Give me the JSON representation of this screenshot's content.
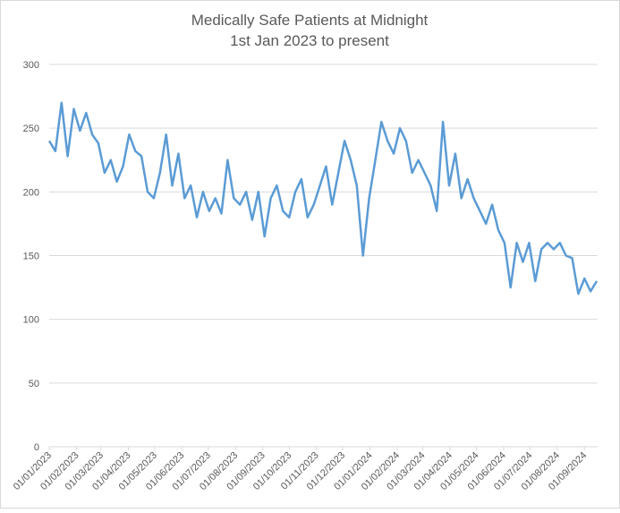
{
  "chart_data": {
    "type": "line",
    "title": "Medically Safe Patients at Midnight",
    "subtitle": "1st Jan 2023 to present",
    "color": "#5b9bd5",
    "grid": true,
    "xlim": [
      "2023-01-01",
      "2024-09-16"
    ],
    "ylim": [
      0,
      300
    ],
    "yticks": [
      0,
      50,
      100,
      150,
      200,
      250,
      300
    ],
    "xticks": [
      {
        "value": "2023-01-01",
        "label": "01/01/2023"
      },
      {
        "value": "2023-02-01",
        "label": "01/02/2023"
      },
      {
        "value": "2023-03-01",
        "label": "01/03/2023"
      },
      {
        "value": "2023-04-01",
        "label": "01/04/2023"
      },
      {
        "value": "2023-05-01",
        "label": "01/05/2023"
      },
      {
        "value": "2023-06-01",
        "label": "01/06/2023"
      },
      {
        "value": "2023-07-01",
        "label": "01/07/2023"
      },
      {
        "value": "2023-08-01",
        "label": "01/08/2023"
      },
      {
        "value": "2023-09-01",
        "label": "01/09/2023"
      },
      {
        "value": "2023-10-01",
        "label": "01/10/2023"
      },
      {
        "value": "2023-11-01",
        "label": "01/11/2023"
      },
      {
        "value": "2023-12-01",
        "label": "01/12/2023"
      },
      {
        "value": "2024-01-01",
        "label": "01/01/2024"
      },
      {
        "value": "2024-02-01",
        "label": "01/02/2024"
      },
      {
        "value": "2024-03-01",
        "label": "01/03/2024"
      },
      {
        "value": "2024-04-01",
        "label": "01/04/2024"
      },
      {
        "value": "2024-05-01",
        "label": "01/05/2024"
      },
      {
        "value": "2024-06-01",
        "label": "01/06/2024"
      },
      {
        "value": "2024-07-01",
        "label": "01/07/2024"
      },
      {
        "value": "2024-08-01",
        "label": "01/08/2024"
      },
      {
        "value": "2024-09-01",
        "label": "01/09/2024"
      }
    ],
    "x": [
      "2023-01-01",
      "2023-01-08",
      "2023-01-15",
      "2023-01-22",
      "2023-01-29",
      "2023-02-05",
      "2023-02-12",
      "2023-02-19",
      "2023-02-26",
      "2023-03-05",
      "2023-03-12",
      "2023-03-19",
      "2023-03-26",
      "2023-04-02",
      "2023-04-09",
      "2023-04-16",
      "2023-04-23",
      "2023-04-30",
      "2023-05-07",
      "2023-05-14",
      "2023-05-21",
      "2023-05-28",
      "2023-06-04",
      "2023-06-11",
      "2023-06-18",
      "2023-06-25",
      "2023-07-02",
      "2023-07-09",
      "2023-07-16",
      "2023-07-23",
      "2023-07-30",
      "2023-08-06",
      "2023-08-13",
      "2023-08-20",
      "2023-08-27",
      "2023-09-03",
      "2023-09-10",
      "2023-09-17",
      "2023-09-24",
      "2023-10-01",
      "2023-10-08",
      "2023-10-15",
      "2023-10-22",
      "2023-10-29",
      "2023-11-05",
      "2023-11-12",
      "2023-11-19",
      "2023-11-26",
      "2023-12-03",
      "2023-12-10",
      "2023-12-17",
      "2023-12-24",
      "2023-12-31",
      "2024-01-07",
      "2024-01-14",
      "2024-01-21",
      "2024-01-28",
      "2024-02-04",
      "2024-02-11",
      "2024-02-18",
      "2024-02-25",
      "2024-03-03",
      "2024-03-10",
      "2024-03-17",
      "2024-03-24",
      "2024-03-31",
      "2024-04-07",
      "2024-04-14",
      "2024-04-21",
      "2024-04-28",
      "2024-05-05",
      "2024-05-12",
      "2024-05-19",
      "2024-05-26",
      "2024-06-02",
      "2024-06-09",
      "2024-06-16",
      "2024-06-23",
      "2024-06-30",
      "2024-07-07",
      "2024-07-14",
      "2024-07-21",
      "2024-07-28",
      "2024-08-04",
      "2024-08-11",
      "2024-08-18",
      "2024-08-25",
      "2024-09-01",
      "2024-09-08",
      "2024-09-15"
    ],
    "values": [
      240,
      232,
      270,
      228,
      265,
      248,
      262,
      245,
      238,
      215,
      225,
      208,
      220,
      245,
      232,
      228,
      200,
      195,
      215,
      245,
      205,
      230,
      195,
      205,
      180,
      200,
      185,
      195,
      183,
      225,
      195,
      190,
      200,
      178,
      200,
      165,
      195,
      205,
      185,
      180,
      200,
      210,
      180,
      190,
      205,
      220,
      190,
      215,
      240,
      225,
      205,
      150,
      195,
      225,
      255,
      240,
      230,
      250,
      240,
      215,
      225,
      215,
      205,
      185,
      255,
      205,
      230,
      195,
      210,
      195,
      185,
      175,
      190,
      170,
      160,
      125,
      160,
      145,
      160,
      130,
      155,
      160,
      155,
      160,
      150,
      148,
      120,
      132,
      122,
      130
    ]
  }
}
